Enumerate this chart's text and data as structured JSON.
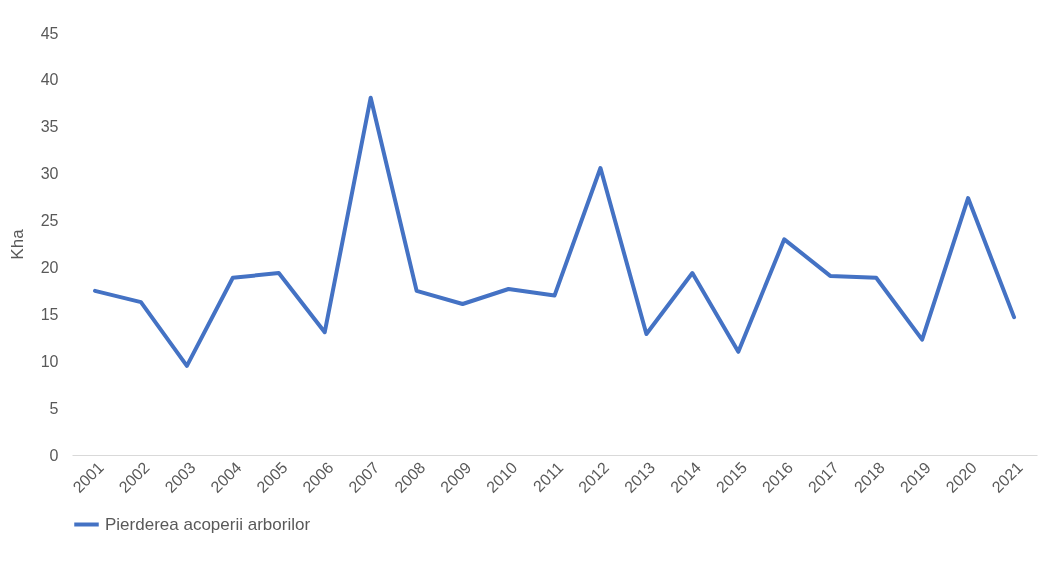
{
  "chart_data": {
    "type": "line",
    "ylabel": "Kha",
    "categories": [
      "2001",
      "2002",
      "2003",
      "2004",
      "2005",
      "2006",
      "2007",
      "2008",
      "2009",
      "2010",
      "2011",
      "2012",
      "2013",
      "2014",
      "2015",
      "2016",
      "2017",
      "2018",
      "2019",
      "2020",
      "2021"
    ],
    "series": [
      {
        "name": "Pierderea acoperii arborilor",
        "color": "#4472c4",
        "values": [
          17.5,
          16.3,
          9.5,
          18.9,
          19.4,
          13.1,
          38.1,
          17.5,
          16.1,
          17.7,
          17.0,
          30.6,
          12.9,
          19.4,
          11.0,
          23.0,
          19.1,
          18.9,
          12.3,
          27.4,
          14.7
        ]
      }
    ],
    "ylim": [
      0,
      45
    ],
    "yticks": [
      0,
      5,
      10,
      15,
      20,
      25,
      30,
      35,
      40,
      45
    ],
    "legend": "bottom"
  }
}
